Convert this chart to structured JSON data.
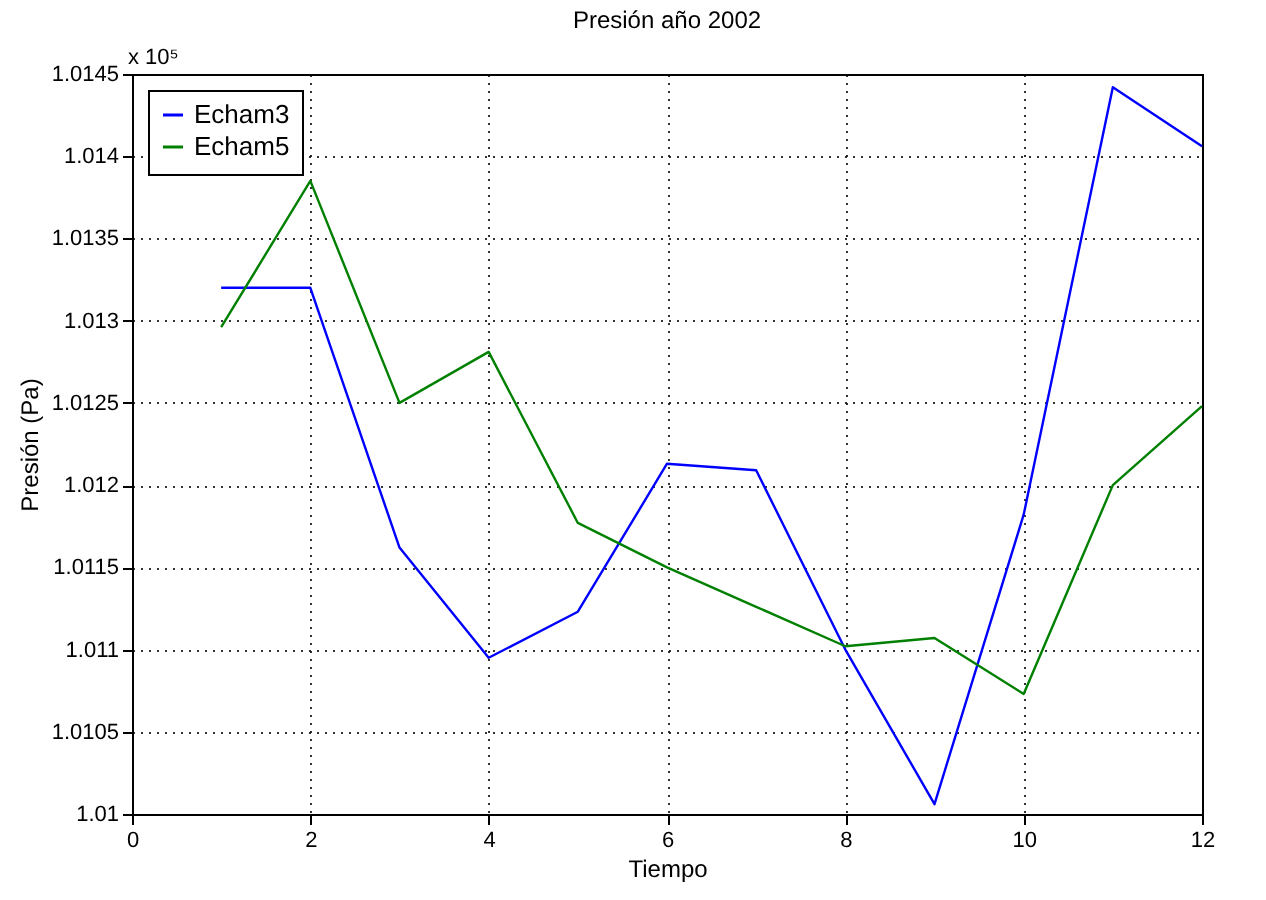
{
  "chart_data": {
    "type": "line",
    "title": "Presión año 2002",
    "xlabel": "Tiempo",
    "ylabel": "Presión (Pa)",
    "annotations": [
      "x 10⁵"
    ],
    "x": [
      1,
      2,
      3,
      4,
      5,
      6,
      7,
      8,
      9,
      10,
      11,
      12
    ],
    "series": [
      {
        "name": "Echam3",
        "color": "#0000ff",
        "values": [
          1.0132,
          1.0132,
          1.01162,
          1.01095,
          1.01123,
          1.01213,
          1.01209,
          1.011,
          1.01006,
          1.01182,
          1.01442,
          1.01406
        ]
      },
      {
        "name": "Echam5",
        "color": "#008000",
        "values": [
          1.01296,
          1.01385,
          1.0125,
          1.01281,
          1.01177,
          1.0115,
          1.01126,
          1.01102,
          1.01107,
          1.01073,
          1.012,
          1.01248
        ]
      }
    ],
    "xlim": [
      0,
      12
    ],
    "xticks": [
      0,
      2,
      4,
      6,
      8,
      10,
      12
    ],
    "ylim": [
      1.01,
      1.0145
    ],
    "yticks": [
      1.01,
      1.0105,
      1.011,
      1.0115,
      1.012,
      1.0125,
      1.013,
      1.0135,
      1.014,
      1.0145
    ],
    "grid": true,
    "legend": "top left",
    "marker": "none",
    "line_style": "solid"
  }
}
